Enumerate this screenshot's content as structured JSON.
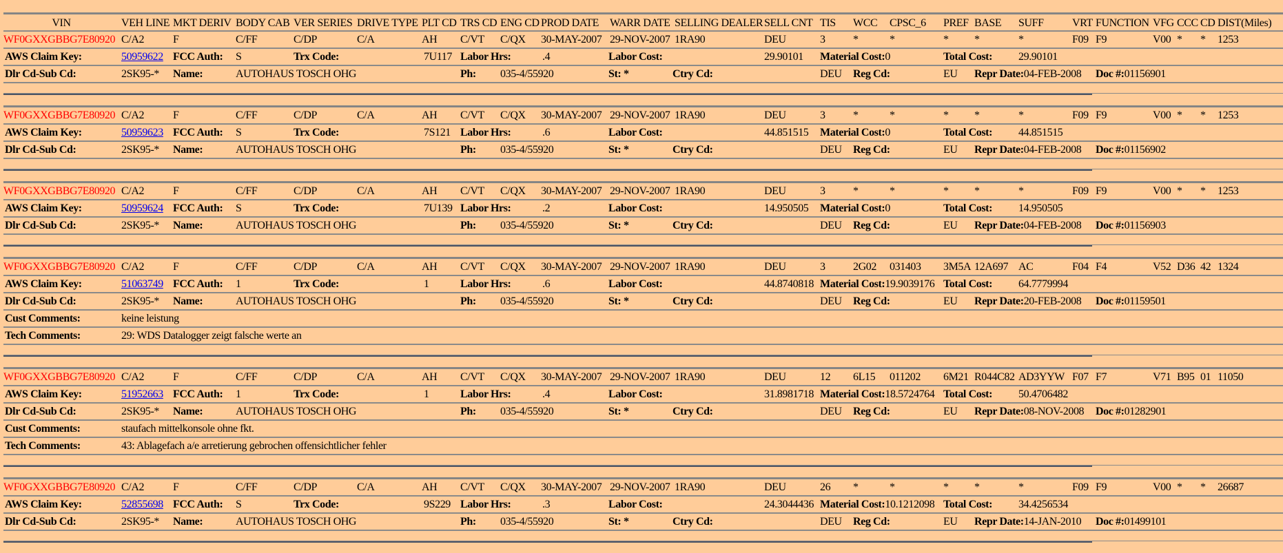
{
  "colors": {
    "background": "#FFCC99",
    "vin": "#FF0000",
    "link": "#0000EE",
    "rule": "#8a8a8a"
  },
  "header": {
    "columns": [
      "VIN",
      "VEH LINE",
      "MKT DERIV",
      "BODY CAB",
      "VER SERIES",
      "DRIVE TYPE",
      "PLT CD",
      "TRS CD",
      "ENG CD",
      "PROD DATE",
      "WARR DATE",
      "SELLING DEALER",
      "SELL CNT",
      "TIS",
      "WCC",
      "CPSC_6",
      "PREF",
      "BASE",
      "SUFF",
      "VRT",
      "FUNCTION",
      "VFG",
      "CCC",
      "CD",
      "DIST(Miles)"
    ]
  },
  "labels": {
    "aws_claim_key": "AWS Claim Key:",
    "fcc_auth": "FCC Auth:",
    "trx_code": "Trx Code:",
    "labor_hrs": "Labor Hrs:",
    "labor_cost": "Labor Cost:",
    "material_cost": "Material Cost:",
    "total_cost": "Total Cost:",
    "dlr_cd": "Dlr Cd-Sub Cd:",
    "name": "Name:",
    "ph": "Ph:",
    "st": "St: *",
    "ctry_cd": "Ctry Cd:",
    "reg_cd": "Reg Cd:",
    "repr_date": "Repr Date:",
    "doc_no": "Doc #:",
    "cust_comments": "Cust Comments:",
    "tech_comments": "Tech Comments:"
  },
  "claims": [
    {
      "vin": "WF0GXXGBBG7E80920",
      "veh_line": "C/A2",
      "mkt_deriv": "F",
      "body_cab": "C/FF",
      "ver_series": "C/DP",
      "drive_type": "C/A",
      "plt_cd": "AH",
      "trs_cd": "C/VT",
      "eng_cd": "C/QX",
      "prod_date": "30-MAY-2007",
      "warr_date": "29-NOV-2007",
      "selling_dealer": "1RA90",
      "sell_cnt": "DEU",
      "tis": "3",
      "wcc": "*",
      "cpsc_6": "*",
      "pref": "*",
      "base": "*",
      "suff": "*",
      "vrt": "F09",
      "function": "F9",
      "vfg": "V00",
      "ccc": "*",
      "cd": "*",
      "dist": "1253",
      "claim_key": "50959622",
      "fcc_auth": "S",
      "trx_code": "7U117",
      "labor_hrs": ".4",
      "labor_cost": "29.90101",
      "material_cost": "0",
      "total_cost": "29.90101",
      "dlr_cd": "2SK95-*",
      "name": "AUTOHAUS TOSCH OHG",
      "ph": "035-4/55920",
      "ctry_cd": "DEU",
      "reg_cd": "EU",
      "repr_date": "04-FEB-2008",
      "doc_no": "01156901"
    },
    {
      "vin": "WF0GXXGBBG7E80920",
      "veh_line": "C/A2",
      "mkt_deriv": "F",
      "body_cab": "C/FF",
      "ver_series": "C/DP",
      "drive_type": "C/A",
      "plt_cd": "AH",
      "trs_cd": "C/VT",
      "eng_cd": "C/QX",
      "prod_date": "30-MAY-2007",
      "warr_date": "29-NOV-2007",
      "selling_dealer": "1RA90",
      "sell_cnt": "DEU",
      "tis": "3",
      "wcc": "*",
      "cpsc_6": "*",
      "pref": "*",
      "base": "*",
      "suff": "*",
      "vrt": "F09",
      "function": "F9",
      "vfg": "V00",
      "ccc": "*",
      "cd": "*",
      "dist": "1253",
      "claim_key": "50959623",
      "fcc_auth": "S",
      "trx_code": "7S121",
      "labor_hrs": ".6",
      "labor_cost": "44.851515",
      "material_cost": "0",
      "total_cost": "44.851515",
      "dlr_cd": "2SK95-*",
      "name": "AUTOHAUS TOSCH OHG",
      "ph": "035-4/55920",
      "ctry_cd": "DEU",
      "reg_cd": "EU",
      "repr_date": "04-FEB-2008",
      "doc_no": "01156902"
    },
    {
      "vin": "WF0GXXGBBG7E80920",
      "veh_line": "C/A2",
      "mkt_deriv": "F",
      "body_cab": "C/FF",
      "ver_series": "C/DP",
      "drive_type": "C/A",
      "plt_cd": "AH",
      "trs_cd": "C/VT",
      "eng_cd": "C/QX",
      "prod_date": "30-MAY-2007",
      "warr_date": "29-NOV-2007",
      "selling_dealer": "1RA90",
      "sell_cnt": "DEU",
      "tis": "3",
      "wcc": "*",
      "cpsc_6": "*",
      "pref": "*",
      "base": "*",
      "suff": "*",
      "vrt": "F09",
      "function": "F9",
      "vfg": "V00",
      "ccc": "*",
      "cd": "*",
      "dist": "1253",
      "claim_key": "50959624",
      "fcc_auth": "S",
      "trx_code": "7U139",
      "labor_hrs": ".2",
      "labor_cost": "14.950505",
      "material_cost": "0",
      "total_cost": "14.950505",
      "dlr_cd": "2SK95-*",
      "name": "AUTOHAUS TOSCH OHG",
      "ph": "035-4/55920",
      "ctry_cd": "DEU",
      "reg_cd": "EU",
      "repr_date": "04-FEB-2008",
      "doc_no": "01156903"
    },
    {
      "vin": "WF0GXXGBBG7E80920",
      "veh_line": "C/A2",
      "mkt_deriv": "F",
      "body_cab": "C/FF",
      "ver_series": "C/DP",
      "drive_type": "C/A",
      "plt_cd": "AH",
      "trs_cd": "C/VT",
      "eng_cd": "C/QX",
      "prod_date": "30-MAY-2007",
      "warr_date": "29-NOV-2007",
      "selling_dealer": "1RA90",
      "sell_cnt": "DEU",
      "tis": "3",
      "wcc": "2G02",
      "cpsc_6": "031403",
      "pref": "3M5A",
      "base": "12A697",
      "suff": "AC",
      "vrt": "F04",
      "function": "F4",
      "vfg": "V52",
      "ccc": "D36",
      "cd": "42",
      "dist": "1324",
      "claim_key": "51063749",
      "fcc_auth": "1",
      "trx_code": "1",
      "labor_hrs": ".6",
      "labor_cost": "44.8740818",
      "material_cost": "19.9039176",
      "total_cost": "64.7779994",
      "dlr_cd": "2SK95-*",
      "name": "AUTOHAUS TOSCH OHG",
      "ph": "035-4/55920",
      "ctry_cd": "DEU",
      "reg_cd": "EU",
      "repr_date": "20-FEB-2008",
      "doc_no": "01159501",
      "cust_comments": "keine leistung",
      "tech_comments": "29: WDS Datalogger zeigt falsche werte an"
    },
    {
      "vin": "WF0GXXGBBG7E80920",
      "veh_line": "C/A2",
      "mkt_deriv": "F",
      "body_cab": "C/FF",
      "ver_series": "C/DP",
      "drive_type": "C/A",
      "plt_cd": "AH",
      "trs_cd": "C/VT",
      "eng_cd": "C/QX",
      "prod_date": "30-MAY-2007",
      "warr_date": "29-NOV-2007",
      "selling_dealer": "1RA90",
      "sell_cnt": "DEU",
      "tis": "12",
      "wcc": "6L15",
      "cpsc_6": "011202",
      "pref": "6M21",
      "base": "R044C82",
      "suff": "AD3YYW",
      "vrt": "F07",
      "function": "F7",
      "vfg": "V71",
      "ccc": "B95",
      "cd": "01",
      "dist": "11050",
      "claim_key": "51952663",
      "fcc_auth": "1",
      "trx_code": "1",
      "labor_hrs": ".4",
      "labor_cost": "31.8981718",
      "material_cost": "18.5724764",
      "total_cost": "50.4706482",
      "dlr_cd": "2SK95-*",
      "name": "AUTOHAUS TOSCH OHG",
      "ph": "035-4/55920",
      "ctry_cd": "DEU",
      "reg_cd": "EU",
      "repr_date": "08-NOV-2008",
      "doc_no": "01282901",
      "cust_comments": "staufach mittelkonsole ohne fkt.",
      "tech_comments": "43: Ablagefach a/e arretierung gebrochen offensichtlicher fehler"
    },
    {
      "vin": "WF0GXXGBBG7E80920",
      "veh_line": "C/A2",
      "mkt_deriv": "F",
      "body_cab": "C/FF",
      "ver_series": "C/DP",
      "drive_type": "C/A",
      "plt_cd": "AH",
      "trs_cd": "C/VT",
      "eng_cd": "C/QX",
      "prod_date": "30-MAY-2007",
      "warr_date": "29-NOV-2007",
      "selling_dealer": "1RA90",
      "sell_cnt": "DEU",
      "tis": "26",
      "wcc": "*",
      "cpsc_6": "*",
      "pref": "*",
      "base": "*",
      "suff": "*",
      "vrt": "F09",
      "function": "F9",
      "vfg": "V00",
      "ccc": "*",
      "cd": "*",
      "dist": "26687",
      "claim_key": "52855698",
      "fcc_auth": "S",
      "trx_code": "9S229",
      "labor_hrs": ".3",
      "labor_cost": "24.3044436",
      "material_cost": "10.1212098",
      "total_cost": "34.4256534",
      "dlr_cd": "2SK95-*",
      "name": "AUTOHAUS TOSCH OHG",
      "ph": "035-4/55920",
      "ctry_cd": "DEU",
      "reg_cd": "EU",
      "repr_date": "14-JAN-2010",
      "doc_no": "01499101"
    }
  ]
}
